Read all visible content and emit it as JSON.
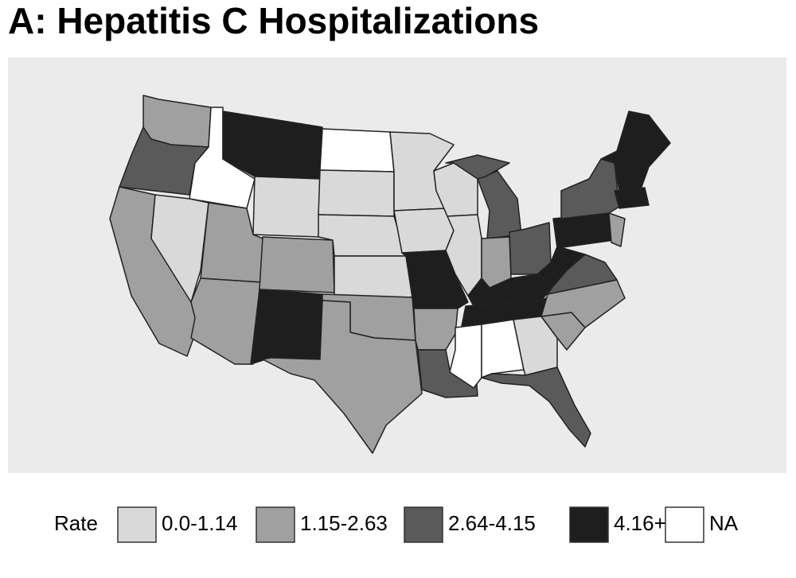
{
  "title": "A: Hepatitis C Hospitalizations",
  "legend": {
    "title": "Rate",
    "items": [
      {
        "label": "0.0-1.14",
        "color": "#d9d9d9"
      },
      {
        "label": "1.15-2.63",
        "color": "#a0a0a0"
      },
      {
        "label": "2.64-4.15",
        "color": "#5a5a5a"
      },
      {
        "label": "4.16+",
        "color": "#1e1e1e"
      },
      {
        "label": "NA",
        "color": "#ffffff"
      }
    ]
  }
}
